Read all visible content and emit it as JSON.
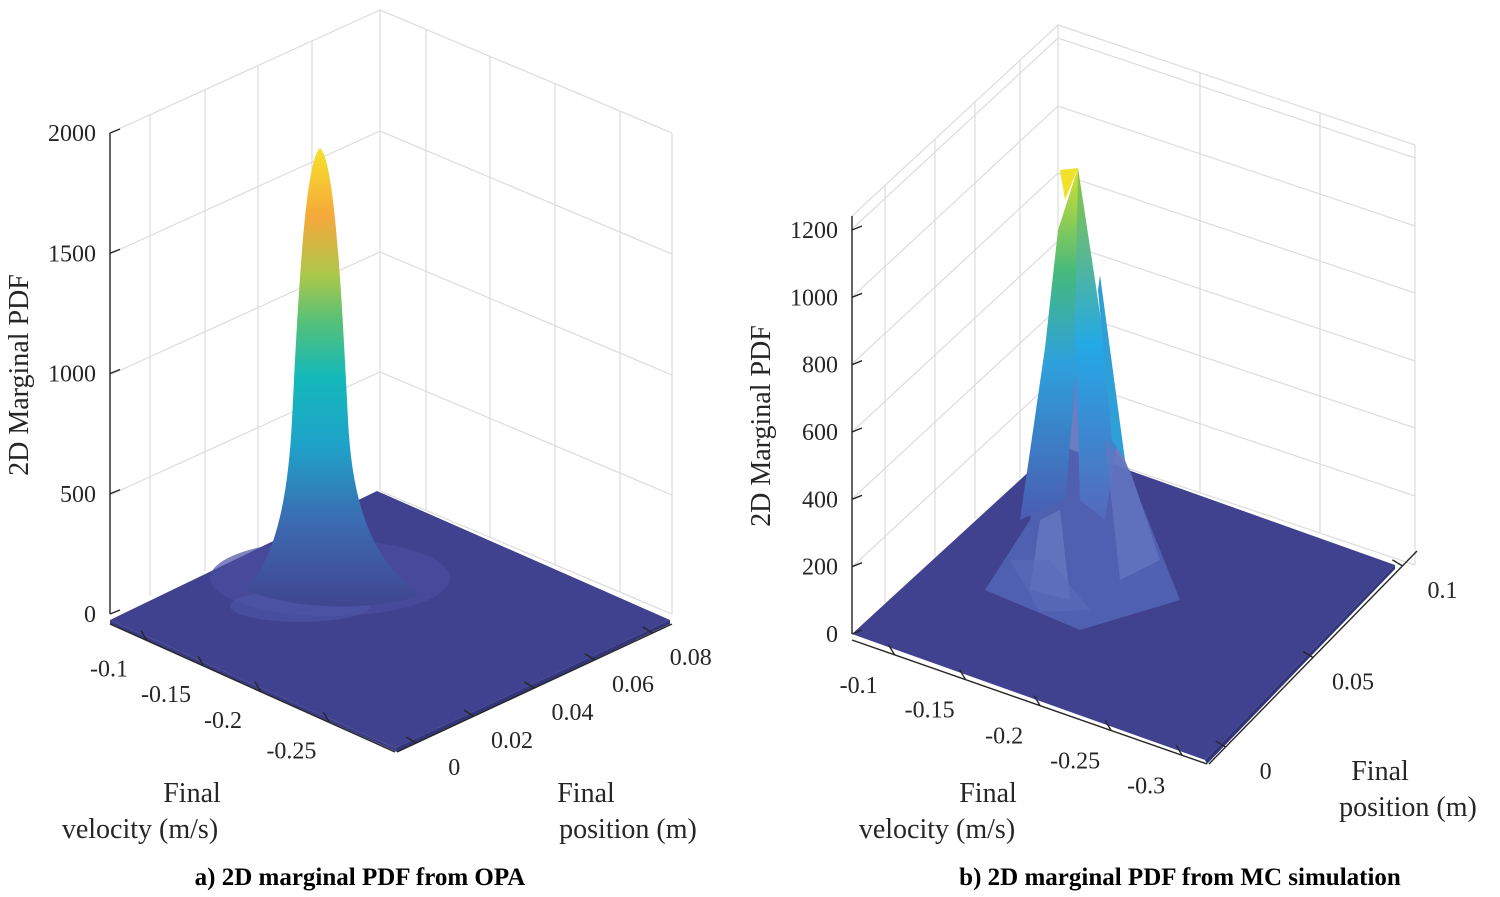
{
  "chart_data": [
    {
      "type": "surface",
      "caption": "a) 2D marginal PDF from OPA",
      "zlabel": "2D Marginal PDF",
      "xlabel": [
        "Final",
        "velocity (m/s)"
      ],
      "ylabel": [
        "Final",
        "position (m)"
      ],
      "zticks": [
        "0",
        "500",
        "1000",
        "1500",
        "2000"
      ],
      "zlim": [
        0,
        2000
      ],
      "xticks": [
        "-0.1",
        "-0.15",
        "-0.2",
        "-0.25"
      ],
      "yticks": [
        "0",
        "0.02",
        "0.04",
        "0.06",
        "0.08"
      ],
      "peak_value": 1950,
      "peak_velocity": -0.15,
      "peak_position": 0.02,
      "colormap": [
        "#440154",
        "#3e4a89",
        "#26818e",
        "#1fa187",
        "#6ece58",
        "#b5de2b",
        "#fde725"
      ],
      "floor_color": "#3f3f94"
    },
    {
      "type": "surface",
      "caption": "b) 2D marginal PDF from MC simulation",
      "zlabel": "2D Marginal PDF",
      "xlabel": [
        "Final",
        "velocity (m/s)"
      ],
      "ylabel": [
        "Final",
        "position (m)"
      ],
      "zticks": [
        "0",
        "200",
        "400",
        "600",
        "800",
        "1000",
        "1200"
      ],
      "zlim": [
        0,
        1200
      ],
      "xticks": [
        "-0.1",
        "-0.15",
        "-0.2",
        "-0.25",
        "-0.3"
      ],
      "yticks": [
        "0",
        "0.05",
        "0.1"
      ],
      "peak_value": 1350,
      "peak_velocity": -0.17,
      "peak_position": 0.02,
      "floor_color": "#3f3f94"
    }
  ]
}
